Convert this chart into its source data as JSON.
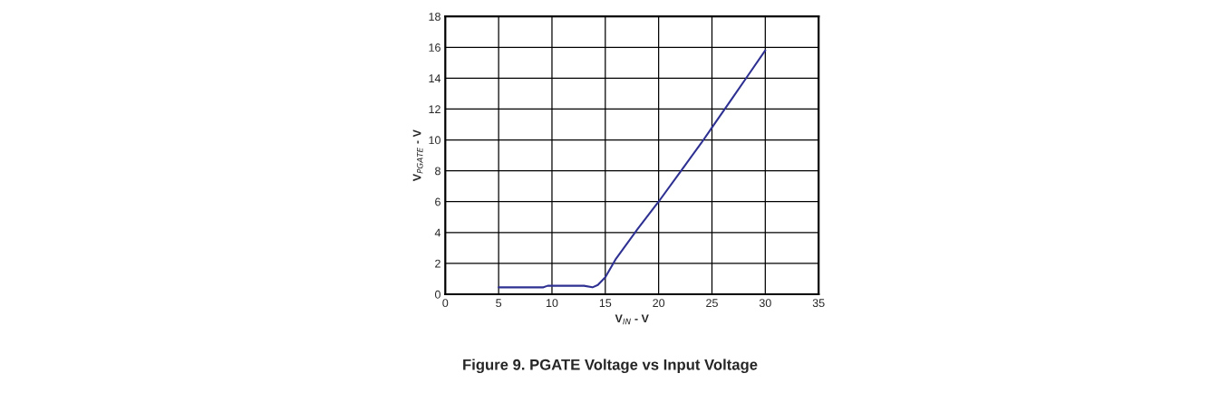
{
  "chart_data": {
    "type": "line",
    "title": "Figure 9. PGATE Voltage vs Input Voltage",
    "xlabel": "V$_{IN}$ - V",
    "ylabel": "V$_{PGATE}$ - V",
    "series": [
      {
        "color": "#2e3192",
        "x": [
          5,
          9.2,
          9.6,
          13,
          13.8,
          14.3,
          15,
          16,
          18,
          20,
          22,
          24,
          25,
          27,
          28.5,
          30
        ],
        "values": [
          0.45,
          0.45,
          0.55,
          0.55,
          0.45,
          0.6,
          1.1,
          2.3,
          4.2,
          6.0,
          7.9,
          9.8,
          10.8,
          12.8,
          14.3,
          15.8
        ]
      }
    ],
    "xlim": [
      0,
      35
    ],
    "xticks": [
      0,
      5,
      10,
      15,
      20,
      25,
      30,
      35
    ],
    "ylim": [
      0,
      18
    ],
    "yticks": [
      0,
      2,
      4,
      6,
      8,
      10,
      12,
      14,
      16,
      18
    ],
    "grid": true,
    "line_style": "solid"
  }
}
